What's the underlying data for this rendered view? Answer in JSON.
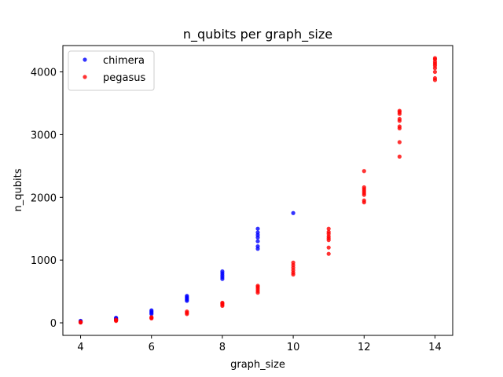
{
  "chart_data": {
    "type": "scatter",
    "title": "n_qubits per graph_size",
    "xlabel": "graph_size",
    "ylabel": "n_qubits",
    "xlim": [
      3.5,
      14.5
    ],
    "ylim": [
      -200,
      4420
    ],
    "xticks": [
      4,
      6,
      8,
      10,
      12,
      14
    ],
    "yticks": [
      0,
      1000,
      2000,
      3000,
      4000
    ],
    "grid": false,
    "legend_position": "top-left",
    "series": [
      {
        "name": "chimera",
        "color": "#0000ff",
        "points": [
          [
            4,
            8
          ],
          [
            4,
            16
          ],
          [
            4,
            24
          ],
          [
            4,
            32
          ],
          [
            5,
            48
          ],
          [
            5,
            60
          ],
          [
            5,
            72
          ],
          [
            5,
            80
          ],
          [
            6,
            140
          ],
          [
            6,
            160
          ],
          [
            6,
            180
          ],
          [
            6,
            200
          ],
          [
            7,
            350
          ],
          [
            7,
            370
          ],
          [
            7,
            390
          ],
          [
            7,
            410
          ],
          [
            7,
            430
          ],
          [
            8,
            700
          ],
          [
            8,
            730
          ],
          [
            8,
            760
          ],
          [
            8,
            790
          ],
          [
            8,
            820
          ],
          [
            9,
            1180
          ],
          [
            9,
            1220
          ],
          [
            9,
            1300
          ],
          [
            9,
            1360
          ],
          [
            9,
            1400
          ],
          [
            9,
            1440
          ],
          [
            9,
            1500
          ],
          [
            10,
            1750
          ]
        ]
      },
      {
        "name": "pegasus",
        "color": "#ff0000",
        "points": [
          [
            4,
            5
          ],
          [
            4,
            10
          ],
          [
            4,
            15
          ],
          [
            5,
            30
          ],
          [
            5,
            40
          ],
          [
            5,
            50
          ],
          [
            6,
            70
          ],
          [
            6,
            80
          ],
          [
            6,
            90
          ],
          [
            7,
            140
          ],
          [
            7,
            160
          ],
          [
            7,
            180
          ],
          [
            8,
            270
          ],
          [
            8,
            290
          ],
          [
            8,
            310
          ],
          [
            8,
            320
          ],
          [
            9,
            480
          ],
          [
            9,
            510
          ],
          [
            9,
            540
          ],
          [
            9,
            570
          ],
          [
            9,
            590
          ],
          [
            10,
            770
          ],
          [
            10,
            800
          ],
          [
            10,
            840
          ],
          [
            10,
            880
          ],
          [
            10,
            920
          ],
          [
            10,
            960
          ],
          [
            11,
            1100
          ],
          [
            11,
            1200
          ],
          [
            11,
            1320
          ],
          [
            11,
            1350
          ],
          [
            11,
            1380
          ],
          [
            11,
            1420
          ],
          [
            11,
            1450
          ],
          [
            11,
            1500
          ],
          [
            12,
            1920
          ],
          [
            12,
            1950
          ],
          [
            12,
            2040
          ],
          [
            12,
            2070
          ],
          [
            12,
            2100
          ],
          [
            12,
            2130
          ],
          [
            12,
            2160
          ],
          [
            12,
            2420
          ],
          [
            13,
            2650
          ],
          [
            13,
            2880
          ],
          [
            13,
            3100
          ],
          [
            13,
            3130
          ],
          [
            13,
            3220
          ],
          [
            13,
            3250
          ],
          [
            13,
            3330
          ],
          [
            13,
            3360
          ],
          [
            13,
            3380
          ],
          [
            14,
            3870
          ],
          [
            14,
            3900
          ],
          [
            14,
            4000
          ],
          [
            14,
            4060
          ],
          [
            14,
            4100
          ],
          [
            14,
            4130
          ],
          [
            14,
            4160
          ],
          [
            14,
            4200
          ],
          [
            14,
            4220
          ]
        ]
      }
    ]
  }
}
